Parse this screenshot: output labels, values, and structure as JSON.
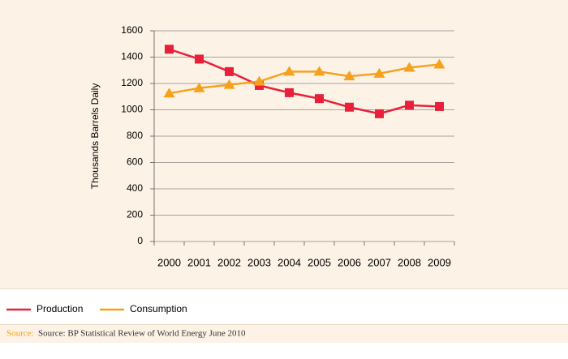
{
  "chart_data": {
    "type": "line",
    "y_label": "Thousands Barrels Daily",
    "categories": [
      "2000",
      "2001",
      "2002",
      "2003",
      "2004",
      "2005",
      "2006",
      "2007",
      "2008",
      "2009"
    ],
    "series": [
      {
        "name": "Production",
        "color": "#e8203a",
        "marker": "square",
        "values": [
          1460,
          1385,
          1290,
          1185,
          1130,
          1085,
          1020,
          970,
          1035,
          1025
        ]
      },
      {
        "name": "Consumption",
        "color": "#f5a11c",
        "marker": "triangle",
        "values": [
          1125,
          1165,
          1190,
          1215,
          1290,
          1290,
          1255,
          1275,
          1320,
          1345
        ]
      }
    ],
    "ylim": [
      0,
      1600
    ],
    "yticks": [
      0,
      200,
      400,
      600,
      800,
      1000,
      1200,
      1400,
      1600
    ],
    "grid": true,
    "legend": "bottom",
    "source_label": "Source:",
    "source": "Source: BP Statistical Review of World Energy June 2010"
  }
}
